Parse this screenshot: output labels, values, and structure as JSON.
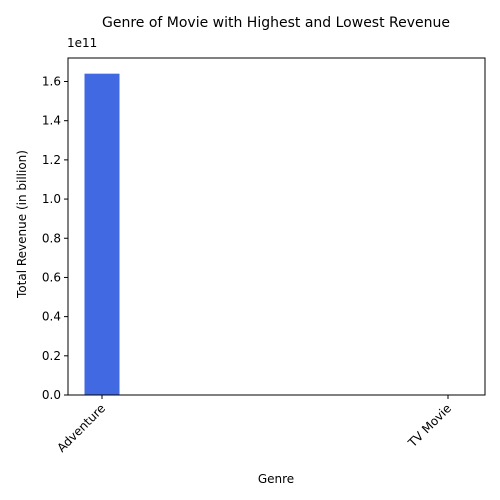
{
  "chart_data": {
    "type": "bar",
    "title": "Genre of Movie with Highest and Lowest Revenue",
    "xlabel": "Genre",
    "ylabel": "Total Revenue (in billion)",
    "categories": [
      "Adventure",
      "TV Movie"
    ],
    "values": [
      164000000000,
      0
    ],
    "ylim": [
      0,
      172000000000
    ],
    "y_ticks": [
      0,
      20000000000,
      40000000000,
      60000000000,
      80000000000,
      100000000000,
      120000000000,
      140000000000,
      160000000000
    ],
    "y_tick_labels": [
      "0.0",
      "0.2",
      "0.4",
      "0.6",
      "0.8",
      "1.0",
      "1.2",
      "1.4",
      "1.6"
    ],
    "y_offset_label": "1e11",
    "bar_color": "#4169e1",
    "grid": false,
    "legend": "none"
  }
}
